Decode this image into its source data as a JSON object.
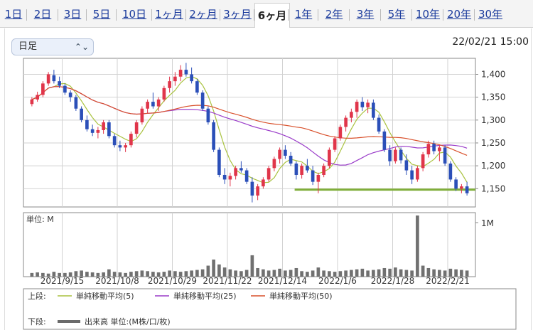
{
  "tabs": [
    {
      "label": "1日"
    },
    {
      "label": "2日"
    },
    {
      "label": "3日"
    },
    {
      "label": "5日"
    },
    {
      "label": "10日"
    },
    {
      "label": "1ヶ月"
    },
    {
      "label": "2ヶ月"
    },
    {
      "label": "3ヶ月"
    },
    {
      "label": "6ヶ月",
      "active": true
    },
    {
      "label": "1年"
    },
    {
      "label": "2年"
    },
    {
      "label": "3年"
    },
    {
      "label": "5年"
    },
    {
      "label": "10年"
    },
    {
      "label": "20年"
    },
    {
      "label": "30年"
    }
  ],
  "period_select": {
    "value": "日足"
  },
  "datetime": "22/02/21 15:00",
  "chart_data": {
    "type": "candlestick",
    "y_ticks": [
      "1,400",
      "1,350",
      "1,300",
      "1,250",
      "1,200",
      "1,150"
    ],
    "ylim": [
      1110,
      1435
    ],
    "x_ticks": [
      "2021/9/15",
      "2021/10/8",
      "2021/10/29",
      "2021/11/22",
      "2021/12/14",
      "2022/1/6",
      "2022/1/28",
      "2022/2/21"
    ],
    "support_line": {
      "value": 1148,
      "color": "#7fae3a"
    },
    "volume_axis_label": "1M",
    "volume_unit_label": "単位: M",
    "ohlc": [
      [
        1335,
        1350,
        1330,
        1345
      ],
      [
        1345,
        1362,
        1340,
        1355
      ],
      [
        1355,
        1385,
        1350,
        1380
      ],
      [
        1380,
        1405,
        1375,
        1400
      ],
      [
        1398,
        1410,
        1380,
        1385
      ],
      [
        1385,
        1395,
        1370,
        1375
      ],
      [
        1375,
        1380,
        1355,
        1360
      ],
      [
        1360,
        1365,
        1340,
        1350
      ],
      [
        1350,
        1355,
        1320,
        1325
      ],
      [
        1325,
        1330,
        1295,
        1300
      ],
      [
        1300,
        1310,
        1275,
        1280
      ],
      [
        1280,
        1290,
        1265,
        1272
      ],
      [
        1272,
        1285,
        1260,
        1278
      ],
      [
        1278,
        1300,
        1270,
        1295
      ],
      [
        1295,
        1300,
        1260,
        1265
      ],
      [
        1265,
        1270,
        1240,
        1245
      ],
      [
        1245,
        1255,
        1232,
        1240
      ],
      [
        1240,
        1250,
        1230,
        1245
      ],
      [
        1245,
        1275,
        1240,
        1270
      ],
      [
        1270,
        1300,
        1262,
        1295
      ],
      [
        1295,
        1330,
        1290,
        1325
      ],
      [
        1325,
        1345,
        1315,
        1340
      ],
      [
        1340,
        1360,
        1325,
        1330
      ],
      [
        1330,
        1350,
        1320,
        1345
      ],
      [
        1345,
        1375,
        1340,
        1370
      ],
      [
        1370,
        1395,
        1360,
        1385
      ],
      [
        1385,
        1405,
        1375,
        1395
      ],
      [
        1395,
        1420,
        1385,
        1410
      ],
      [
        1410,
        1425,
        1395,
        1400
      ],
      [
        1400,
        1415,
        1380,
        1385
      ],
      [
        1385,
        1390,
        1355,
        1360
      ],
      [
        1360,
        1365,
        1320,
        1325
      ],
      [
        1325,
        1330,
        1290,
        1295
      ],
      [
        1295,
        1300,
        1230,
        1235
      ],
      [
        1235,
        1240,
        1175,
        1180
      ],
      [
        1180,
        1195,
        1160,
        1170
      ],
      [
        1170,
        1185,
        1155,
        1178
      ],
      [
        1178,
        1200,
        1170,
        1195
      ],
      [
        1195,
        1210,
        1185,
        1190
      ],
      [
        1190,
        1195,
        1160,
        1165
      ],
      [
        1165,
        1175,
        1120,
        1135
      ],
      [
        1135,
        1160,
        1125,
        1155
      ],
      [
        1155,
        1175,
        1150,
        1170
      ],
      [
        1170,
        1200,
        1165,
        1195
      ],
      [
        1195,
        1220,
        1188,
        1215
      ],
      [
        1215,
        1240,
        1205,
        1235
      ],
      [
        1235,
        1245,
        1215,
        1222
      ],
      [
        1222,
        1230,
        1200,
        1205
      ],
      [
        1205,
        1210,
        1170,
        1180
      ],
      [
        1180,
        1205,
        1172,
        1200
      ],
      [
        1200,
        1215,
        1185,
        1190
      ],
      [
        1190,
        1200,
        1158,
        1165
      ],
      [
        1165,
        1185,
        1140,
        1180
      ],
      [
        1180,
        1205,
        1175,
        1200
      ],
      [
        1200,
        1240,
        1195,
        1235
      ],
      [
        1235,
        1265,
        1230,
        1260
      ],
      [
        1260,
        1290,
        1255,
        1285
      ],
      [
        1285,
        1310,
        1275,
        1305
      ],
      [
        1305,
        1325,
        1295,
        1318
      ],
      [
        1318,
        1345,
        1305,
        1340
      ],
      [
        1340,
        1350,
        1320,
        1328
      ],
      [
        1328,
        1345,
        1315,
        1338
      ],
      [
        1338,
        1345,
        1300,
        1305
      ],
      [
        1305,
        1312,
        1270,
        1275
      ],
      [
        1275,
        1280,
        1230,
        1235
      ],
      [
        1235,
        1245,
        1200,
        1210
      ],
      [
        1210,
        1240,
        1205,
        1235
      ],
      [
        1235,
        1240,
        1205,
        1212
      ],
      [
        1212,
        1225,
        1180,
        1190
      ],
      [
        1190,
        1200,
        1160,
        1170
      ],
      [
        1170,
        1200,
        1165,
        1195
      ],
      [
        1195,
        1230,
        1188,
        1225
      ],
      [
        1225,
        1255,
        1218,
        1248
      ],
      [
        1248,
        1255,
        1225,
        1232
      ],
      [
        1232,
        1245,
        1210,
        1240
      ],
      [
        1240,
        1245,
        1200,
        1205
      ],
      [
        1205,
        1210,
        1165,
        1170
      ],
      [
        1170,
        1175,
        1145,
        1150
      ],
      [
        1150,
        1160,
        1140,
        1155
      ],
      [
        1155,
        1165,
        1135,
        1140
      ]
    ],
    "volume_max": 1.0,
    "volume": [
      0.06,
      0.07,
      0.06,
      0.05,
      0.08,
      0.06,
      0.06,
      0.07,
      0.09,
      0.1,
      0.08,
      0.07,
      0.06,
      0.07,
      0.12,
      0.08,
      0.07,
      0.06,
      0.08,
      0.09,
      0.1,
      0.09,
      0.08,
      0.07,
      0.08,
      0.1,
      0.09,
      0.08,
      0.09,
      0.1,
      0.11,
      0.12,
      0.18,
      0.28,
      0.2,
      0.15,
      0.12,
      0.1,
      0.09,
      0.11,
      0.35,
      0.14,
      0.12,
      0.1,
      0.11,
      0.13,
      0.1,
      0.11,
      0.14,
      0.09,
      0.08,
      0.1,
      0.15,
      0.1,
      0.09,
      0.08,
      0.09,
      0.1,
      0.11,
      0.12,
      0.13,
      0.1,
      0.11,
      0.12,
      0.14,
      0.13,
      0.15,
      0.12,
      0.11,
      0.1,
      1.0,
      0.18,
      0.14,
      0.12,
      0.11,
      0.1,
      0.13,
      0.12,
      0.11,
      0.1
    ],
    "legend": {
      "upper_label": "上段:",
      "lower_label": "下段:",
      "upper": [
        {
          "name": "単純移動平均(5)",
          "color": "#a9c23f"
        },
        {
          "name": "単純移動平均(25)",
          "color": "#9a3cc9"
        },
        {
          "name": "単純移動平均(50)",
          "color": "#d9512c"
        }
      ],
      "lower": [
        {
          "name": "出来高 単位:(M株/口/枚)",
          "color": "#6b6b6b"
        }
      ]
    }
  }
}
